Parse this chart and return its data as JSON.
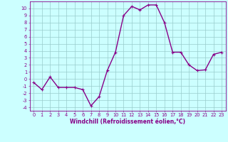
{
  "x": [
    0,
    1,
    2,
    3,
    4,
    5,
    6,
    7,
    8,
    9,
    10,
    11,
    12,
    13,
    14,
    15,
    16,
    17,
    18,
    19,
    20,
    21,
    22,
    23
  ],
  "y": [
    -0.5,
    -1.5,
    0.3,
    -1.2,
    -1.2,
    -1.2,
    -1.5,
    -3.8,
    -2.5,
    1.2,
    3.8,
    9.0,
    10.3,
    9.8,
    10.5,
    10.5,
    8.0,
    3.8,
    3.8,
    2.0,
    1.2,
    1.3,
    3.5,
    3.8
  ],
  "line_color": "#880088",
  "marker": "+",
  "marker_color": "#880088",
  "bg_color": "#ccffff",
  "grid_color": "#99cccc",
  "xlabel": "Windchill (Refroidissement éolien,°C)",
  "xlabel_color": "#880088",
  "tick_color": "#880088",
  "spine_color": "#880088",
  "ylim": [
    -4.5,
    11.0
  ],
  "xlim": [
    -0.5,
    23.5
  ],
  "yticks": [
    -4,
    -3,
    -2,
    -1,
    0,
    1,
    2,
    3,
    4,
    5,
    6,
    7,
    8,
    9,
    10
  ],
  "xticks": [
    0,
    1,
    2,
    3,
    4,
    5,
    6,
    7,
    8,
    9,
    10,
    11,
    12,
    13,
    14,
    15,
    16,
    17,
    18,
    19,
    20,
    21,
    22,
    23
  ],
  "linewidth": 1.0,
  "markersize": 3.5,
  "tick_fontsize": 4.8,
  "xlabel_fontsize": 5.5
}
